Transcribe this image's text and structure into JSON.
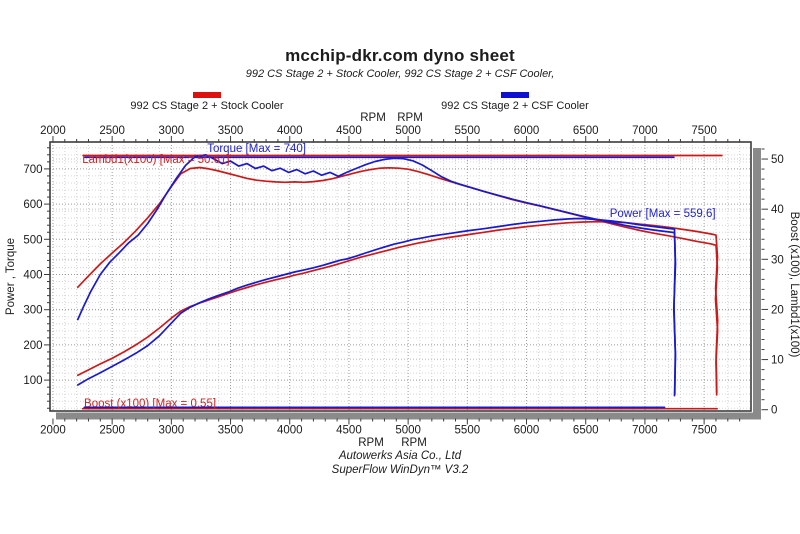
{
  "header": {
    "title": "mcchip-dkr.com dyno sheet",
    "subtitle": "992 CS Stage 2 + Stock Cooler, 992 CS Stage 2 + CSF Cooler,"
  },
  "legend": {
    "items": [
      {
        "label": "992 CS Stage 2 + Stock Cooler",
        "color": "#dd1010"
      },
      {
        "label": "992 CS Stage 2 + CSF Cooler",
        "color": "#1010d0"
      }
    ]
  },
  "footer": {
    "company": "Autowerks Asia Co., Ltd",
    "software": "SuperFlow WinDyn™ V3.2"
  },
  "chart_data": {
    "type": "line",
    "title": "mcchip-dkr.com dyno sheet",
    "grid": true,
    "x_axis": {
      "unit_labels": [
        "RPM",
        "RPM"
      ],
      "ticks": [
        2000,
        2500,
        3000,
        3500,
        4000,
        4500,
        5000,
        5500,
        6000,
        6500,
        7000,
        7500
      ],
      "minor_step": 100,
      "range": [
        1975,
        7896
      ]
    },
    "left_axis": {
      "label": "Power , Torque",
      "ticks": [
        100,
        200,
        300,
        400,
        500,
        600,
        700
      ],
      "minor_step": 20,
      "range": [
        12.2,
        776.4
      ]
    },
    "right_axis": {
      "label": "Boost (x100), Lambd1(x100)",
      "ticks": [
        0,
        10,
        20,
        30,
        40,
        50
      ],
      "minor_step": 2,
      "range": [
        -0.26,
        53.4
      ]
    },
    "annotations": [
      {
        "text": "Torque [Max = 740]",
        "color": "#2222cc",
        "rpm": 3720,
        "v": 748
      },
      {
        "text": "Lambd1(x100) [Max = 50.61]",
        "color": "#cc2222",
        "rpm": 2870,
        "v": 717
      },
      {
        "text": "Power [Max = 559.6]",
        "color": "#2222cc",
        "rpm": 7150,
        "v": 563
      },
      {
        "text": "Boost (x100) [Max = 0.55]",
        "color": "#cc2222",
        "rpm": 2820,
        "v": 24
      }
    ],
    "max_values": {
      "torque": 740,
      "power": 559.6,
      "lambda_x100": 50.61,
      "boost": 0.55
    },
    "series": [
      {
        "name": "lambda-stock",
        "run": "992 CS Stage 2 + Stock Cooler",
        "color": "#cc1a1a",
        "axis": "right",
        "points": [
          [
            2255,
            50.7
          ],
          [
            7650,
            50.7
          ]
        ]
      },
      {
        "name": "lambda-csf",
        "run": "992 CS Stage 2 + CSF Cooler",
        "color": "#1a1acc",
        "axis": "right",
        "points": [
          [
            2270,
            50.35
          ],
          [
            7245,
            50.35
          ]
        ]
      },
      {
        "name": "boost-stock",
        "run": "992 CS Stage 2 + Stock Cooler",
        "color": "#cc1a1a",
        "axis": "right",
        "points": [
          [
            2250,
            0.2
          ],
          [
            7610,
            0.2
          ]
        ]
      },
      {
        "name": "boost-csf",
        "run": "992 CS Stage 2 + CSF Cooler",
        "color": "#1a1acc",
        "axis": "right",
        "points": [
          [
            2265,
            0.45
          ],
          [
            7165,
            0.45
          ]
        ]
      },
      {
        "name": "torque-stock",
        "run": "992 CS Stage 2 + Stock Cooler",
        "color": "#cc1a1a",
        "axis": "left",
        "points": [
          [
            2210,
            364
          ],
          [
            2300,
            396
          ],
          [
            2400,
            430
          ],
          [
            2500,
            461
          ],
          [
            2600,
            491
          ],
          [
            2700,
            524
          ],
          [
            2800,
            561
          ],
          [
            2900,
            601
          ],
          [
            3000,
            650
          ],
          [
            3080,
            686
          ],
          [
            3160,
            701
          ],
          [
            3240,
            704
          ],
          [
            3320,
            700
          ],
          [
            3400,
            694
          ],
          [
            3480,
            687
          ],
          [
            3560,
            680
          ],
          [
            3640,
            673
          ],
          [
            3720,
            668
          ],
          [
            3800,
            665
          ],
          [
            3880,
            663
          ],
          [
            3960,
            662
          ],
          [
            4040,
            663
          ],
          [
            4120,
            662
          ],
          [
            4200,
            664
          ],
          [
            4280,
            667
          ],
          [
            4360,
            672
          ],
          [
            4440,
            679
          ],
          [
            4520,
            686
          ],
          [
            4600,
            693
          ],
          [
            4680,
            698
          ],
          [
            4760,
            702
          ],
          [
            4840,
            703
          ],
          [
            4920,
            702
          ],
          [
            5000,
            699
          ],
          [
            5080,
            693
          ],
          [
            5160,
            685
          ],
          [
            5240,
            676
          ],
          [
            5320,
            668
          ],
          [
            5400,
            660
          ],
          [
            5520,
            648
          ],
          [
            5640,
            636
          ],
          [
            5760,
            624
          ],
          [
            5880,
            613
          ],
          [
            6000,
            603
          ],
          [
            6120,
            594
          ],
          [
            6240,
            584
          ],
          [
            6360,
            574
          ],
          [
            6480,
            564
          ],
          [
            6600,
            554
          ],
          [
            6720,
            544
          ],
          [
            6840,
            534
          ],
          [
            6960,
            525
          ],
          [
            7080,
            517
          ],
          [
            7200,
            510
          ],
          [
            7320,
            502
          ],
          [
            7440,
            494
          ],
          [
            7560,
            487
          ],
          [
            7600,
            483
          ],
          [
            7612,
            420
          ],
          [
            7596,
            330
          ],
          [
            7614,
            240
          ],
          [
            7600,
            150
          ],
          [
            7606,
            58
          ]
        ]
      },
      {
        "name": "power-stock",
        "run": "992 CS Stage 2 + Stock Cooler",
        "color": "#cc1a1a",
        "axis": "left",
        "points": [
          [
            2210,
            114
          ],
          [
            2300,
            129
          ],
          [
            2400,
            146
          ],
          [
            2500,
            162
          ],
          [
            2600,
            180
          ],
          [
            2700,
            200
          ],
          [
            2800,
            222
          ],
          [
            2900,
            248
          ],
          [
            3000,
            276
          ],
          [
            3080,
            296
          ],
          [
            3160,
            309
          ],
          [
            3240,
            319
          ],
          [
            3320,
            328
          ],
          [
            3400,
            337
          ],
          [
            3480,
            346
          ],
          [
            3560,
            355
          ],
          [
            3640,
            363
          ],
          [
            3720,
            371
          ],
          [
            3800,
            378
          ],
          [
            3880,
            385
          ],
          [
            3960,
            391
          ],
          [
            4040,
            398
          ],
          [
            4120,
            404
          ],
          [
            4200,
            411
          ],
          [
            4280,
            418
          ],
          [
            4360,
            425
          ],
          [
            4440,
            433
          ],
          [
            4520,
            441
          ],
          [
            4600,
            449
          ],
          [
            4680,
            456
          ],
          [
            4760,
            463
          ],
          [
            4840,
            470
          ],
          [
            4920,
            477
          ],
          [
            5000,
            483
          ],
          [
            5080,
            489
          ],
          [
            5160,
            494
          ],
          [
            5240,
            499
          ],
          [
            5320,
            504
          ],
          [
            5400,
            508
          ],
          [
            5520,
            514
          ],
          [
            5640,
            520
          ],
          [
            5760,
            526
          ],
          [
            5880,
            531
          ],
          [
            6000,
            536
          ],
          [
            6120,
            540
          ],
          [
            6240,
            544
          ],
          [
            6360,
            547
          ],
          [
            6480,
            549
          ],
          [
            6600,
            550
          ],
          [
            6720,
            549
          ],
          [
            6840,
            547
          ],
          [
            6960,
            543
          ],
          [
            7080,
            539
          ],
          [
            7200,
            534
          ],
          [
            7320,
            528
          ],
          [
            7440,
            522
          ],
          [
            7560,
            515
          ],
          [
            7600,
            512
          ],
          [
            7613,
            450
          ],
          [
            7597,
            360
          ],
          [
            7615,
            270
          ],
          [
            7601,
            170
          ],
          [
            7607,
            64
          ]
        ]
      },
      {
        "name": "torque-csf",
        "run": "992 CS Stage 2 + CSF Cooler",
        "color": "#1a1acc",
        "axis": "left",
        "points": [
          [
            2210,
            272
          ],
          [
            2260,
            310
          ],
          [
            2320,
            352
          ],
          [
            2400,
            400
          ],
          [
            2480,
            435
          ],
          [
            2560,
            462
          ],
          [
            2640,
            490
          ],
          [
            2720,
            512
          ],
          [
            2800,
            545
          ],
          [
            2880,
            585
          ],
          [
            2960,
            630
          ],
          [
            3040,
            672
          ],
          [
            3120,
            710
          ],
          [
            3200,
            735
          ],
          [
            3290,
            740
          ],
          [
            3360,
            728
          ],
          [
            3430,
            715
          ],
          [
            3500,
            722
          ],
          [
            3570,
            708
          ],
          [
            3640,
            715
          ],
          [
            3710,
            701
          ],
          [
            3780,
            708
          ],
          [
            3850,
            695
          ],
          [
            3920,
            702
          ],
          [
            3990,
            690
          ],
          [
            4060,
            698
          ],
          [
            4130,
            686
          ],
          [
            4200,
            694
          ],
          [
            4270,
            682
          ],
          [
            4340,
            690
          ],
          [
            4410,
            679
          ],
          [
            4480,
            690
          ],
          [
            4560,
            701
          ],
          [
            4640,
            712
          ],
          [
            4720,
            721
          ],
          [
            4800,
            727
          ],
          [
            4880,
            730
          ],
          [
            4960,
            729
          ],
          [
            5040,
            723
          ],
          [
            5120,
            711
          ],
          [
            5200,
            695
          ],
          [
            5280,
            678
          ],
          [
            5360,
            665
          ],
          [
            5440,
            656
          ],
          [
            5520,
            648
          ],
          [
            5640,
            636
          ],
          [
            5760,
            625
          ],
          [
            5880,
            614
          ],
          [
            6000,
            604
          ],
          [
            6120,
            595
          ],
          [
            6240,
            585
          ],
          [
            6360,
            575
          ],
          [
            6480,
            565
          ],
          [
            6600,
            556
          ],
          [
            6720,
            547
          ],
          [
            6840,
            539
          ],
          [
            6960,
            532
          ],
          [
            7080,
            526
          ],
          [
            7200,
            521
          ],
          [
            7250,
            519
          ],
          [
            7258,
            430
          ],
          [
            7244,
            300
          ],
          [
            7258,
            170
          ],
          [
            7250,
            56
          ]
        ]
      },
      {
        "name": "power-csf",
        "run": "992 CS Stage 2 + CSF Cooler",
        "color": "#1a1acc",
        "axis": "left",
        "points": [
          [
            2210,
            86
          ],
          [
            2300,
            104
          ],
          [
            2400,
            121
          ],
          [
            2500,
            139
          ],
          [
            2600,
            157
          ],
          [
            2700,
            176
          ],
          [
            2800,
            198
          ],
          [
            2900,
            226
          ],
          [
            3000,
            262
          ],
          [
            3080,
            290
          ],
          [
            3160,
            307
          ],
          [
            3240,
            320
          ],
          [
            3320,
            331
          ],
          [
            3400,
            341
          ],
          [
            3480,
            350
          ],
          [
            3560,
            361
          ],
          [
            3640,
            370
          ],
          [
            3720,
            378
          ],
          [
            3800,
            386
          ],
          [
            3880,
            393
          ],
          [
            3960,
            400
          ],
          [
            4040,
            407
          ],
          [
            4120,
            413
          ],
          [
            4200,
            419
          ],
          [
            4280,
            426
          ],
          [
            4360,
            434
          ],
          [
            4430,
            441
          ],
          [
            4480,
            444
          ],
          [
            4560,
            452
          ],
          [
            4640,
            461
          ],
          [
            4720,
            470
          ],
          [
            4800,
            478
          ],
          [
            4880,
            486
          ],
          [
            4960,
            492
          ],
          [
            5040,
            499
          ],
          [
            5120,
            504
          ],
          [
            5200,
            509
          ],
          [
            5280,
            513
          ],
          [
            5360,
            517
          ],
          [
            5440,
            521
          ],
          [
            5520,
            525
          ],
          [
            5640,
            530
          ],
          [
            5760,
            536
          ],
          [
            5880,
            542
          ],
          [
            6000,
            547
          ],
          [
            6120,
            551
          ],
          [
            6240,
            555
          ],
          [
            6360,
            558
          ],
          [
            6440,
            559
          ],
          [
            6520,
            558
          ],
          [
            6600,
            556
          ],
          [
            6720,
            552
          ],
          [
            6840,
            547
          ],
          [
            6960,
            541
          ],
          [
            7080,
            536
          ],
          [
            7200,
            531
          ],
          [
            7250,
            529
          ],
          [
            7256,
            440
          ],
          [
            7246,
            310
          ],
          [
            7257,
            180
          ],
          [
            7252,
            60
          ]
        ]
      }
    ]
  }
}
